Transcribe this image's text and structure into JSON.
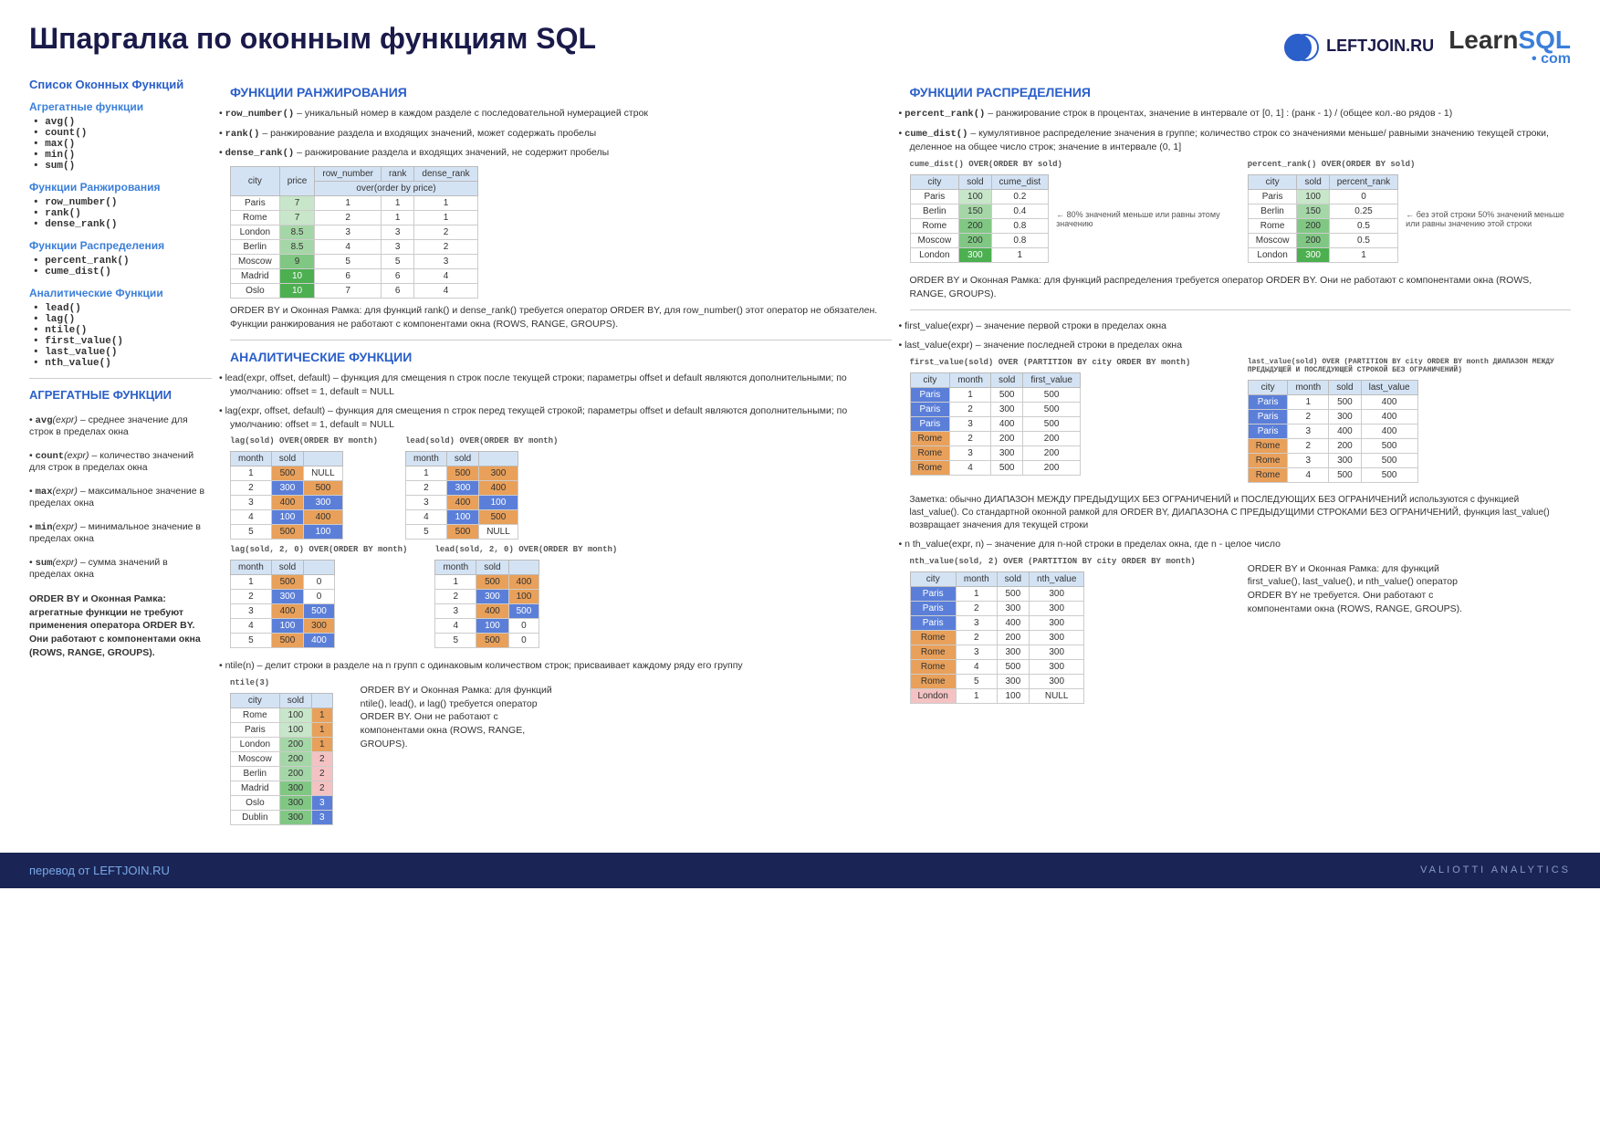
{
  "title": "Шпаргалка по оконным функциям SQL",
  "logos": {
    "leftjoin": "LEFTJOIN.RU",
    "learnsql1": "Learn",
    "learnsql2": "SQL",
    "learnsql_sub": "• com"
  },
  "sidebar": {
    "h": "Список Оконных Функций",
    "g1": {
      "h": "Агрегатные функции",
      "items": [
        "avg()",
        "count()",
        "max()",
        "min()",
        "sum()"
      ]
    },
    "g2": {
      "h": "Функции Ранжирования",
      "items": [
        "row_number()",
        "rank()",
        "dense_rank()"
      ]
    },
    "g3": {
      "h": "Функции Распределения",
      "items": [
        "percent_rank()",
        "cume_dist()"
      ]
    },
    "g4": {
      "h": "Аналитические Функции",
      "items": [
        "lead()",
        "lag()",
        "ntile()",
        "first_value()",
        "last_value()",
        "nth_value()"
      ]
    },
    "agg_h": "АГРЕГАТНЫЕ ФУНКЦИИ",
    "agg": [
      {
        "fn": "avg",
        "sig": "(expr)",
        "desc": " – среднее значение для строк в пределах окна"
      },
      {
        "fn": "count",
        "sig": "(expr)",
        "desc": " – количество значений для строк в пределах окна"
      },
      {
        "fn": "max",
        "sig": "(expr)",
        "desc": " – максимальное значение в пределах окна"
      },
      {
        "fn": "min",
        "sig": "(expr)",
        "desc": " – минимальное значение в пределах окна"
      },
      {
        "fn": "sum",
        "sig": "(expr)",
        "desc": " – сумма значений в пределах окна"
      }
    ],
    "agg_note": "ORDER BY и Оконная Рамка: агрегатные функции не требуют применения оператора ORDER BY. Они работают с компонентами окна (ROWS, RANGE, GROUPS)."
  },
  "ranking": {
    "h": "ФУНКЦИИ РАНЖИРОВАНИЯ",
    "items": [
      {
        "fn": "row_number()",
        "desc": " – уникальный номер в каждом разделе с последовательной нумерацией строк"
      },
      {
        "fn": "rank()",
        "desc": " – ранжирование раздела и входящих значений, может содержать пробелы"
      },
      {
        "fn": "dense_rank()",
        "desc": " – ранжирование раздела и входящих значений, не содержит пробелы"
      }
    ],
    "table": {
      "subheader": "over(order by price)",
      "cols": [
        "city",
        "price",
        "row_number",
        "rank",
        "dense_rank"
      ],
      "rows": [
        [
          "Paris",
          "7",
          "1",
          "1",
          "1",
          "hl-green1"
        ],
        [
          "Rome",
          "7",
          "2",
          "1",
          "1",
          "hl-green1"
        ],
        [
          "London",
          "8.5",
          "3",
          "3",
          "2",
          "hl-green2"
        ],
        [
          "Berlin",
          "8.5",
          "4",
          "3",
          "2",
          "hl-green2"
        ],
        [
          "Moscow",
          "9",
          "5",
          "5",
          "3",
          "hl-green3"
        ],
        [
          "Madrid",
          "10",
          "6",
          "6",
          "4",
          "hl-green5"
        ],
        [
          "Oslo",
          "10",
          "7",
          "6",
          "4",
          "hl-green5"
        ]
      ]
    },
    "note": "ORDER BY и Оконная Рамка: для функций rank() и dense_rank() требуется оператор ORDER BY, для row_number() этот оператор не обязателен. Функции ранжирования не работают с компонентами окна (ROWS, RANGE, GROUPS)."
  },
  "distribution": {
    "h": "ФУНКЦИИ РАСПРЕДЕЛЕНИЯ",
    "items": [
      {
        "fn": "percent_rank()",
        "desc": " – ранжирование строк в процентах, значение в интервале от [0, 1] : (ранк - 1) / (общее кол.-во рядов - 1)"
      },
      {
        "fn": "cume_dist()",
        "desc": " – кумулятивное распределение значения в группе; количество строк со значениями меньше/ равными значению текущей строки, деленное на общее число строк; значение в интервале (0, 1]"
      }
    ],
    "t1": {
      "label": "cume_dist() OVER(ORDER BY sold)",
      "cols": [
        "city",
        "sold",
        "cume_dist"
      ],
      "rows": [
        [
          "Paris",
          "100",
          "0.2"
        ],
        [
          "Berlin",
          "150",
          "0.4"
        ],
        [
          "Rome",
          "200",
          "0.8"
        ],
        [
          "Moscow",
          "200",
          "0.8"
        ],
        [
          "London",
          "300",
          "1"
        ]
      ],
      "sold_cls": [
        "hl-green1",
        "hl-green2",
        "hl-green3",
        "hl-green3",
        "hl-green5"
      ],
      "note": "80% значений меньше или равны этому значению"
    },
    "t2": {
      "label": "percent_rank() OVER(ORDER BY sold)",
      "cols": [
        "city",
        "sold",
        "percent_rank"
      ],
      "rows": [
        [
          "Paris",
          "100",
          "0"
        ],
        [
          "Berlin",
          "150",
          "0.25"
        ],
        [
          "Rome",
          "200",
          "0.5"
        ],
        [
          "Moscow",
          "200",
          "0.5"
        ],
        [
          "London",
          "300",
          "1"
        ]
      ],
      "sold_cls": [
        "hl-green1",
        "hl-green2",
        "hl-green3",
        "hl-green3",
        "hl-green5"
      ],
      "note": "без этой строки 50% значений меньше или равны значению этой строки"
    },
    "note": "ORDER BY и Оконная Рамка: для функций распределения требуется оператор ORDER BY. Они не работают с компонентами окна (ROWS, RANGE, GROUPS)."
  },
  "analytic": {
    "h": "АНАЛИТИЧЕСКИЕ ФУНКЦИИ",
    "lead_desc": "lead(expr, offset, default) – функция для смещения n строк после текущей строки; параметры offset и default являются дополнительными; по умолчанию: offset = 1, default = NULL",
    "lag_desc": "lag(expr, offset, default) – функция для смещения n строк перед текущей строкой; параметры offset и default являются дополнительными; по умолчанию: offset = 1, default = NULL",
    "lag1": {
      "label": "lag(sold) OVER(ORDER BY month)",
      "cols": [
        "month",
        "sold",
        ""
      ],
      "rows": [
        [
          "1",
          "500",
          "NULL"
        ],
        [
          "2",
          "300",
          "500"
        ],
        [
          "3",
          "400",
          "300"
        ],
        [
          "4",
          "100",
          "400"
        ],
        [
          "5",
          "500",
          "100"
        ]
      ]
    },
    "lead1": {
      "label": "lead(sold) OVER(ORDER BY month)",
      "cols": [
        "month",
        "sold",
        ""
      ],
      "rows": [
        [
          "1",
          "500",
          "300"
        ],
        [
          "2",
          "300",
          "400"
        ],
        [
          "3",
          "400",
          "100"
        ],
        [
          "4",
          "100",
          "500"
        ],
        [
          "5",
          "500",
          "NULL"
        ]
      ]
    },
    "lag2": {
      "label": "lag(sold, 2, 0) OVER(ORDER BY month)",
      "cols": [
        "month",
        "sold",
        ""
      ],
      "rows": [
        [
          "1",
          "500",
          "0"
        ],
        [
          "2",
          "300",
          "0"
        ],
        [
          "3",
          "400",
          "500"
        ],
        [
          "4",
          "100",
          "300"
        ],
        [
          "5",
          "500",
          "400"
        ]
      ]
    },
    "lead2": {
      "label": "lead(sold, 2, 0) OVER(ORDER BY month)",
      "cols": [
        "month",
        "sold",
        ""
      ],
      "rows": [
        [
          "1",
          "500",
          "400"
        ],
        [
          "2",
          "300",
          "100"
        ],
        [
          "3",
          "400",
          "500"
        ],
        [
          "4",
          "100",
          "0"
        ],
        [
          "5",
          "500",
          "0"
        ]
      ]
    },
    "sold_cls": [
      "hl-orange",
      "hl-blue",
      "hl-orange",
      "hl-blue",
      "hl-orange"
    ],
    "ntile_desc": "ntile(n) – делит строки в разделе на n групп с одинаковым количеством строк; присваивает каждому ряду его группу",
    "ntile": {
      "label": "ntile(3)",
      "cols": [
        "city",
        "sold",
        ""
      ],
      "rows": [
        [
          "Rome",
          "100",
          "1"
        ],
        [
          "Paris",
          "100",
          "1"
        ],
        [
          "London",
          "200",
          "1"
        ],
        [
          "Moscow",
          "200",
          "2"
        ],
        [
          "Berlin",
          "200",
          "2"
        ],
        [
          "Madrid",
          "300",
          "2"
        ],
        [
          "Oslo",
          "300",
          "3"
        ],
        [
          "Dublin",
          "300",
          "3"
        ]
      ],
      "sold_cls": [
        "hl-green1",
        "hl-green1",
        "hl-green2",
        "hl-green2",
        "hl-green2",
        "hl-green3",
        "hl-green3",
        "hl-green3"
      ],
      "ntile_cls": [
        "hl-orange",
        "hl-orange",
        "hl-orange",
        "hl-pink",
        "hl-pink",
        "hl-pink",
        "hl-blue",
        "hl-blue"
      ]
    },
    "note": "ORDER BY и Оконная Рамка: для функций ntile(), lead(), и lag() требуется оператор ORDER BY. Они не работают с компонентами окна (ROWS, RANGE, GROUPS).",
    "fv_desc": "first_value(expr) – значение первой строки в пределах окна",
    "lv_desc": "last_value(expr) – значение последней строки в пределах окна",
    "fv": {
      "label": "first_value(sold) OVER (PARTITION BY city ORDER BY month)",
      "cols": [
        "city",
        "month",
        "sold",
        "first_value"
      ],
      "rows": [
        [
          "Paris",
          "1",
          "500",
          "500"
        ],
        [
          "Paris",
          "2",
          "300",
          "500"
        ],
        [
          "Paris",
          "3",
          "400",
          "500"
        ],
        [
          "Rome",
          "2",
          "200",
          "200"
        ],
        [
          "Rome",
          "3",
          "300",
          "200"
        ],
        [
          "Rome",
          "4",
          "500",
          "200"
        ]
      ],
      "city_cls": [
        "hl-blue",
        "hl-blue",
        "hl-blue",
        "hl-orange",
        "hl-orange",
        "hl-orange"
      ]
    },
    "lv": {
      "label": "last_value(sold) OVER (PARTITION BY city ORDER BY month ДИАПАЗОН МЕЖДУ ПРЕДЫДУЩЕЙ И ПОСЛЕДУЮЩЕЙ СТРОКОЙ БЕЗ ОГРАНИЧЕНИЙ)",
      "cols": [
        "city",
        "month",
        "sold",
        "last_value"
      ],
      "rows": [
        [
          "Paris",
          "1",
          "500",
          "400"
        ],
        [
          "Paris",
          "2",
          "300",
          "400"
        ],
        [
          "Paris",
          "3",
          "400",
          "400"
        ],
        [
          "Rome",
          "2",
          "200",
          "500"
        ],
        [
          "Rome",
          "3",
          "300",
          "500"
        ],
        [
          "Rome",
          "4",
          "500",
          "500"
        ]
      ],
      "city_cls": [
        "hl-blue",
        "hl-blue",
        "hl-blue",
        "hl-orange",
        "hl-orange",
        "hl-orange"
      ]
    },
    "lv_note": "Заметка: обычно ДИАПАЗОН МЕЖДУ ПРЕДЫДУЩИХ БЕЗ ОГРАНИЧЕНИЙ и ПОСЛЕДУЮЩИХ БЕЗ ОГРАНИЧЕНИЙ используются с функцией last_value(). Со стандартной оконной рамкой для ORDER BY, ДИАПАЗОНА С ПРЕДЫДУЩИМИ СТРОКАМИ БЕЗ ОГРАНИЧЕНИЙ, функция last_value() возвращает значения для текущей строки",
    "nth_desc": "n th_value(expr, n) – значение для n-ной строки в пределах окна, где n - целое число",
    "nth": {
      "label": "nth_value(sold, 2) OVER (PARTITION BY city ORDER BY month)",
      "cols": [
        "city",
        "month",
        "sold",
        "nth_value"
      ],
      "rows": [
        [
          "Paris",
          "1",
          "500",
          "300"
        ],
        [
          "Paris",
          "2",
          "300",
          "300"
        ],
        [
          "Paris",
          "3",
          "400",
          "300"
        ],
        [
          "Rome",
          "2",
          "200",
          "300"
        ],
        [
          "Rome",
          "3",
          "300",
          "300"
        ],
        [
          "Rome",
          "4",
          "500",
          "300"
        ],
        [
          "Rome",
          "5",
          "300",
          "300"
        ],
        [
          "London",
          "1",
          "100",
          "NULL"
        ]
      ],
      "city_cls": [
        "hl-blue",
        "hl-blue",
        "hl-blue",
        "hl-orange",
        "hl-orange",
        "hl-orange",
        "hl-orange",
        "hl-pink"
      ]
    },
    "nth_note": "ORDER BY и Оконная Рамка: для функций first_value(), last_value(), и nth_value() оператор ORDER BY не требуется. Они работают с компонентами окна (ROWS, RANGE, GROUPS)."
  },
  "footer": {
    "left": "перевод от LEFTJOIN.RU",
    "right": "VALIOTTI ANALYTICS"
  }
}
